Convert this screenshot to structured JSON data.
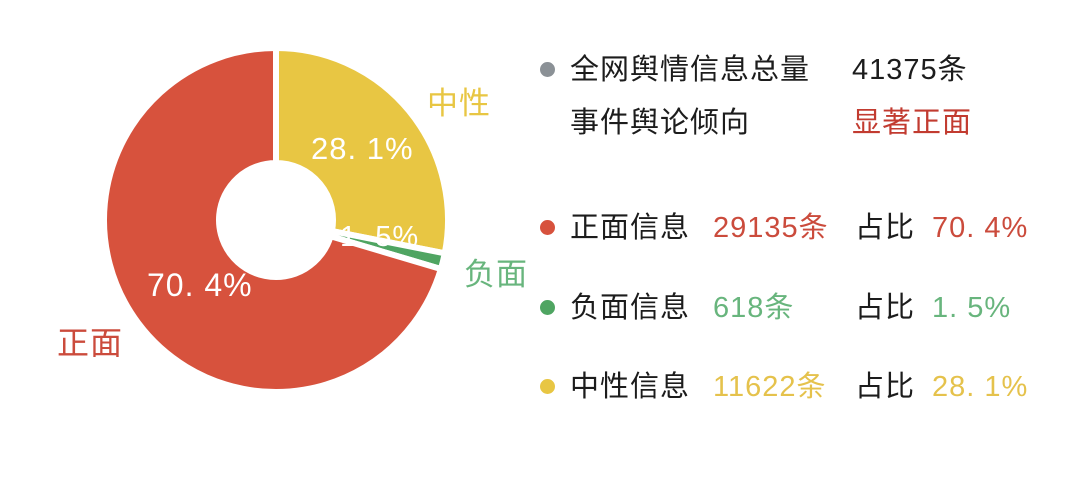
{
  "chart_data": {
    "type": "pie",
    "subtype": "donut",
    "title": "",
    "start_angle": "top",
    "direction": "clockwise",
    "unit": "条",
    "total": 41375,
    "legend_position": "right",
    "slices": [
      {
        "id": "neutral",
        "name": "中性",
        "value": 11622,
        "percent": 28.1,
        "color": "#E8C643"
      },
      {
        "id": "negative",
        "name": "负面",
        "value": 618,
        "percent": 1.5,
        "color": "#4FA562"
      },
      {
        "id": "positive",
        "name": "正面",
        "value": 29135,
        "percent": 70.4,
        "color": "#D7523D"
      }
    ]
  },
  "chart_labels": {
    "neutral_name": "中性",
    "neutral_pct": "28. 1%",
    "negative_name": "负面",
    "negative_pct": "1. 5%",
    "positive_name": "正面",
    "positive_pct": "70. 4%"
  },
  "colors": {
    "neutral": "#E8C643",
    "negative": "#4FA562",
    "positive": "#D7523D",
    "gray_dot": "#8B9196",
    "tendency_red": "#C23B30",
    "positive_text": "#CB4B3C",
    "negative_text": "#68B57D",
    "neutral_text": "#E5C24C",
    "black_text": "#1C1C1C",
    "white": "#FFFFFF"
  },
  "panel": {
    "total": {
      "label": "全网舆情信息总量",
      "value": "41375条"
    },
    "tendency": {
      "label": "事件舆论倾向",
      "value": "显著正面"
    },
    "rows": [
      {
        "id": "positive",
        "label": "正面信息",
        "count": "29135条",
        "ratio_label": "占比",
        "percent": "70. 4%"
      },
      {
        "id": "negative",
        "label": "负面信息",
        "count": "618条",
        "ratio_label": "占比",
        "percent": "1. 5%"
      },
      {
        "id": "neutral",
        "label": "中性信息",
        "count": "11622条",
        "ratio_label": "占比",
        "percent": "28. 1%"
      }
    ]
  }
}
